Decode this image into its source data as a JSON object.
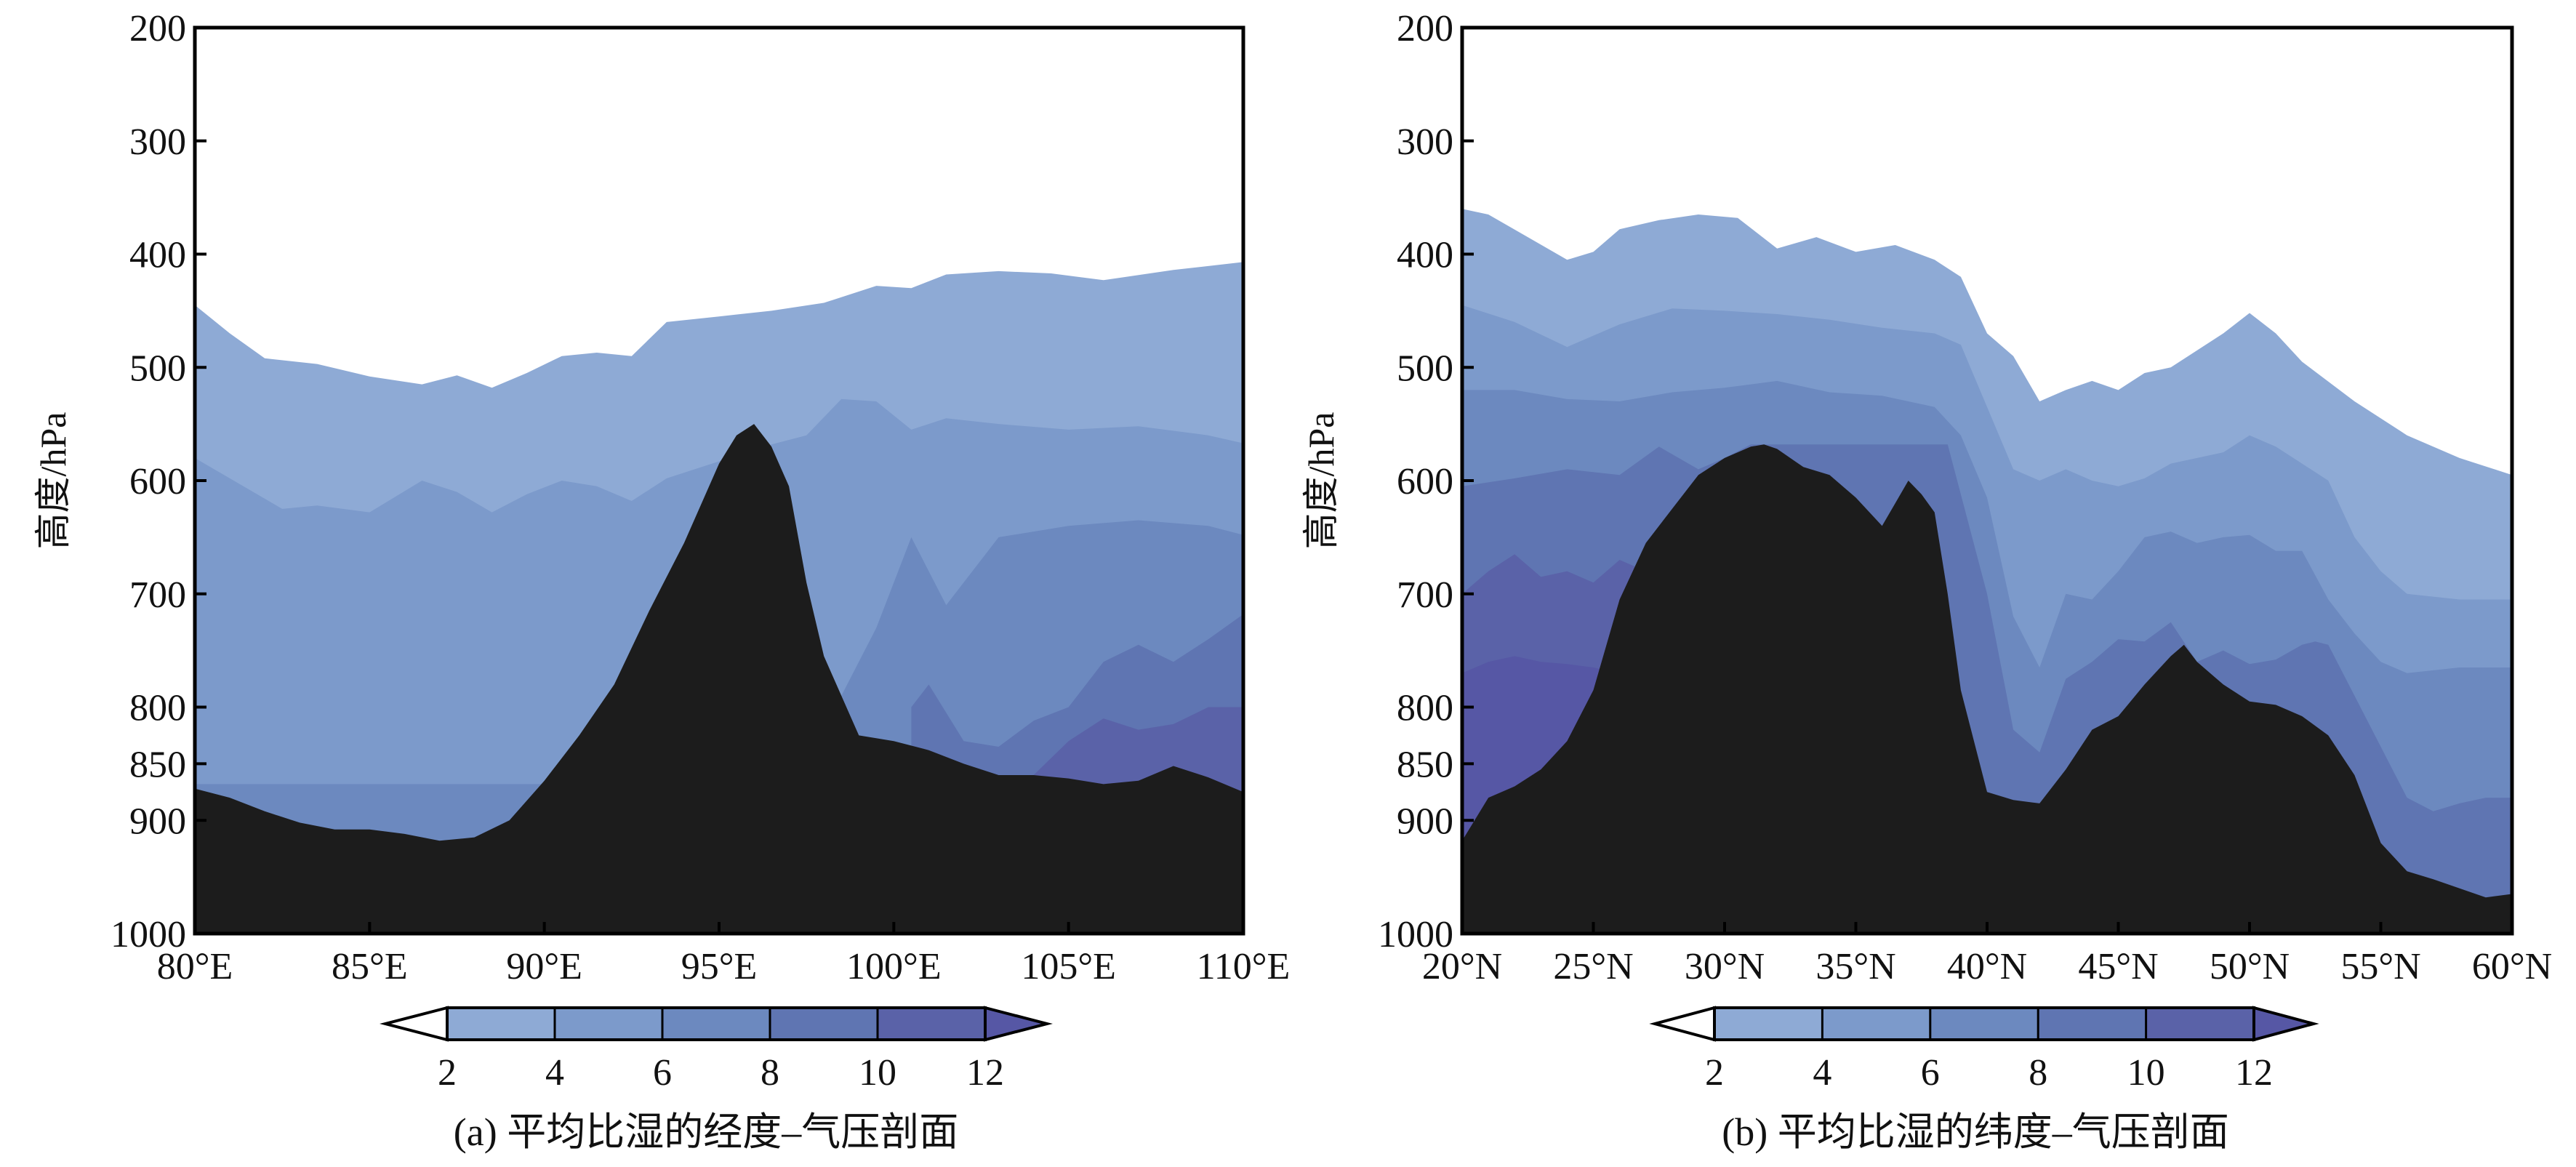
{
  "colors": {
    "ground": "#1c1c1c",
    "levels": [
      "#8eaad5",
      "#7c9acb",
      "#6c89bf",
      "#5f75b2",
      "#5a62a8",
      "#5657a5"
    ]
  },
  "chart_data": [
    {
      "type": "area",
      "caption": "(a) 平均比湿的经度–气压剖面",
      "ylabel": "高度/hPa",
      "xlabel": "",
      "x_range": [
        80,
        110
      ],
      "xticks": [
        80,
        85,
        90,
        95,
        100,
        105,
        110
      ],
      "xtick_labels": [
        "80°E",
        "85°E",
        "90°E",
        "95°E",
        "100°E",
        "105°E",
        "110°E"
      ],
      "ylim": [
        200,
        1000
      ],
      "yticks": [
        200,
        300,
        400,
        500,
        600,
        700,
        800,
        850,
        900,
        1000
      ],
      "ytick_labels": [
        "200",
        "300",
        "400",
        "500",
        "600",
        "700",
        "800",
        "850",
        "900",
        "1000"
      ],
      "colorbar": {
        "levels": [
          2,
          4,
          6,
          8,
          10,
          12
        ],
        "labels": [
          "2",
          "4",
          "6",
          "8",
          "10",
          "12"
        ],
        "extend": "both"
      },
      "contour_tops": [
        {
          "name": "≥2",
          "x": [
            80,
            81,
            82,
            83.5,
            85,
            86.5,
            87.5,
            88.5,
            89.5,
            90.5,
            91.5,
            92.5,
            93.5,
            95,
            96.5,
            98,
            99.5,
            100.5,
            101.5,
            103,
            104.5,
            106,
            108,
            110
          ],
          "p": [
            445,
            470,
            492,
            497,
            508,
            515,
            507,
            518,
            505,
            490,
            487,
            490,
            460,
            455,
            450,
            443,
            428,
            430,
            418,
            415,
            417,
            423,
            414,
            407
          ]
        },
        {
          "name": "≥4",
          "x": [
            80,
            81,
            82.5,
            83.5,
            85,
            86.5,
            87.5,
            88.5,
            89.5,
            90.5,
            91.5,
            92.5,
            93.5,
            94.5,
            95.5,
            96.5,
            97.5,
            98.5,
            99.5,
            100.5,
            101.5,
            103,
            105,
            107,
            109,
            110
          ],
          "p": [
            580,
            598,
            625,
            622,
            628,
            600,
            610,
            628,
            612,
            600,
            605,
            618,
            598,
            588,
            578,
            568,
            560,
            528,
            530,
            555,
            545,
            550,
            555,
            552,
            560,
            567
          ]
        },
        {
          "name": "≥6",
          "x": [
            80,
            82,
            84,
            86,
            88,
            90,
            92,
            94,
            96,
            98,
            99.5,
            100.5,
            101.5,
            103,
            105,
            107,
            109,
            110
          ],
          "p": [
            868,
            868,
            868,
            868,
            868,
            868,
            868,
            868,
            868,
            820,
            730,
            650,
            710,
            650,
            640,
            635,
            640,
            648
          ]
        },
        {
          "name": "≥8",
          "x": [
            100.5,
            101,
            102,
            103,
            104,
            105,
            106,
            107,
            108,
            109,
            110
          ],
          "p": [
            800,
            780,
            830,
            835,
            812,
            800,
            760,
            745,
            760,
            740,
            718
          ]
        },
        {
          "name": "≥10",
          "x": [
            104,
            105,
            106,
            107,
            108,
            109,
            110
          ],
          "p": [
            860,
            830,
            810,
            820,
            815,
            800,
            800
          ]
        }
      ],
      "terrain": {
        "name": "地形",
        "x": [
          80,
          81,
          82,
          83,
          84,
          85,
          86,
          87,
          88,
          89,
          90,
          91,
          92,
          93,
          94,
          95,
          95.5,
          96,
          96.5,
          97,
          97.5,
          98,
          99,
          100,
          101,
          102,
          103,
          104,
          105,
          106,
          107,
          108,
          109,
          110
        ],
        "p": [
          872,
          880,
          892,
          902,
          908,
          908,
          912,
          918,
          915,
          900,
          865,
          825,
          780,
          715,
          655,
          585,
          560,
          550,
          570,
          605,
          690,
          755,
          825,
          830,
          838,
          850,
          860,
          860,
          863,
          868,
          865,
          852,
          862,
          875
        ]
      }
    },
    {
      "type": "area",
      "caption": "(b) 平均比湿的纬度–气压剖面",
      "ylabel": "高度/hPa",
      "xlabel": "",
      "x_range": [
        20,
        60
      ],
      "xticks": [
        20,
        25,
        30,
        35,
        40,
        45,
        50,
        55,
        60
      ],
      "xtick_labels": [
        "20°N",
        "25°N",
        "30°N",
        "35°N",
        "40°N",
        "45°N",
        "50°N",
        "55°N",
        "60°N"
      ],
      "ylim": [
        200,
        1000
      ],
      "yticks": [
        200,
        300,
        400,
        500,
        600,
        700,
        800,
        850,
        900,
        1000
      ],
      "ytick_labels": [
        "200",
        "300",
        "400",
        "500",
        "600",
        "700",
        "800",
        "850",
        "900",
        "1000"
      ],
      "colorbar": {
        "levels": [
          2,
          4,
          6,
          8,
          10,
          12
        ],
        "labels": [
          "2",
          "4",
          "6",
          "8",
          "10",
          "12"
        ],
        "extend": "both"
      },
      "contour_tops": [
        {
          "name": "≥2",
          "x": [
            20,
            21,
            22.5,
            24,
            25,
            26,
            27.5,
            29,
            30.5,
            32,
            33.5,
            35,
            36.5,
            38,
            39,
            40,
            41,
            42,
            43,
            44,
            45,
            46,
            47,
            48,
            49,
            50,
            51,
            52,
            54,
            56,
            58,
            60
          ],
          "p": [
            360,
            365,
            385,
            405,
            398,
            378,
            370,
            365,
            368,
            395,
            385,
            398,
            392,
            405,
            420,
            470,
            490,
            530,
            520,
            512,
            520,
            505,
            500,
            485,
            470,
            452,
            470,
            495,
            530,
            560,
            580,
            595
          ]
        },
        {
          "name": "≥4",
          "x": [
            20,
            22,
            24,
            26,
            28,
            30,
            32,
            34,
            36,
            38,
            39,
            40,
            41,
            42,
            43,
            44,
            45,
            46,
            47,
            48,
            49,
            50,
            51,
            52,
            53,
            54,
            55,
            56,
            58,
            60
          ],
          "p": [
            445,
            460,
            482,
            462,
            448,
            450,
            453,
            458,
            465,
            470,
            480,
            535,
            590,
            600,
            590,
            600,
            605,
            598,
            585,
            580,
            575,
            560,
            570,
            585,
            600,
            650,
            680,
            700,
            705,
            705
          ]
        },
        {
          "name": "≥6",
          "x": [
            20,
            22,
            24,
            26,
            28,
            30,
            32,
            34,
            36,
            38,
            39,
            40,
            41,
            42,
            43,
            44,
            45,
            46,
            47,
            48,
            49,
            50,
            51,
            52,
            53,
            54,
            55,
            56,
            58,
            60
          ],
          "p": [
            520,
            520,
            528,
            530,
            522,
            518,
            512,
            522,
            525,
            535,
            560,
            615,
            720,
            765,
            700,
            705,
            680,
            650,
            645,
            655,
            650,
            648,
            662,
            662,
            705,
            735,
            760,
            770,
            765,
            765
          ]
        },
        {
          "name": "≥8",
          "x": [
            20,
            22,
            24,
            26,
            27.5,
            29,
            30,
            31,
            38.5,
            40,
            41,
            42,
            43,
            44,
            45,
            46,
            47,
            48,
            49,
            50,
            51,
            52,
            52.5,
            53,
            54,
            55,
            56,
            57,
            58,
            59,
            60
          ],
          "p": [
            605,
            598,
            590,
            595,
            570,
            590,
            580,
            568,
            568,
            700,
            820,
            840,
            775,
            760,
            740,
            742,
            725,
            760,
            750,
            762,
            758,
            745,
            742,
            745,
            790,
            835,
            880,
            892,
            885,
            880,
            880
          ]
        },
        {
          "name": "≥10",
          "x": [
            20,
            21,
            22,
            23,
            24,
            25,
            26,
            27,
            28
          ],
          "p": [
            700,
            680,
            665,
            685,
            680,
            690,
            670,
            680,
            690
          ]
        },
        {
          "name": "≥12",
          "x": [
            20,
            21,
            22,
            23,
            24,
            25,
            26
          ],
          "p": [
            770,
            760,
            755,
            760,
            762,
            765,
            770
          ]
        }
      ],
      "terrain": {
        "name": "地形",
        "x": [
          20,
          21,
          22,
          23,
          24,
          25,
          26,
          27,
          28,
          29,
          30,
          31,
          31.5,
          32,
          33,
          34,
          35,
          36,
          36.5,
          37,
          37.5,
          38,
          38.5,
          39,
          40,
          41,
          42,
          43,
          44,
          45,
          46,
          47,
          47.5,
          48,
          49,
          50,
          51,
          52,
          53,
          54,
          55,
          56,
          57,
          58,
          59,
          60
        ],
        "p": [
          918,
          880,
          870,
          855,
          830,
          785,
          705,
          655,
          625,
          595,
          580,
          570,
          568,
          572,
          588,
          595,
          615,
          640,
          620,
          600,
          612,
          628,
          700,
          785,
          875,
          882,
          885,
          855,
          820,
          808,
          780,
          755,
          745,
          760,
          780,
          795,
          798,
          808,
          825,
          860,
          920,
          945,
          952,
          960,
          968,
          965
        ]
      }
    }
  ]
}
